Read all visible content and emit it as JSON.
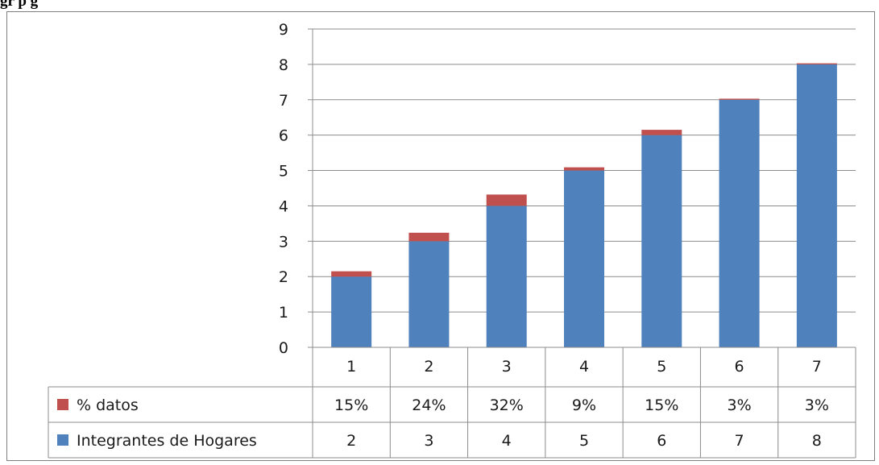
{
  "title_fragment": "gr                                                    p                              g",
  "chart_data": {
    "type": "bar",
    "stacked": true,
    "categories": [
      "1",
      "2",
      "3",
      "4",
      "5",
      "6",
      "7"
    ],
    "series": [
      {
        "name": "Integrantes de Hogares",
        "values": [
          2,
          3,
          4,
          5,
          6,
          7,
          8
        ],
        "labels": [
          "2",
          "3",
          "4",
          "5",
          "6",
          "7",
          "8"
        ],
        "color": "#4f81bd"
      },
      {
        "name": "% datos",
        "values": [
          0.15,
          0.24,
          0.32,
          0.09,
          0.15,
          0.03,
          0.03
        ],
        "labels": [
          "15%",
          "24%",
          "32%",
          "9%",
          "15%",
          "3%",
          "3%"
        ],
        "color": "#c0504d"
      }
    ],
    "ylim": [
      0,
      9
    ],
    "yticks": [
      "0",
      "1",
      "2",
      "3",
      "4",
      "5",
      "6",
      "7",
      "8",
      "9"
    ],
    "grid": true,
    "legend": "data-table"
  }
}
